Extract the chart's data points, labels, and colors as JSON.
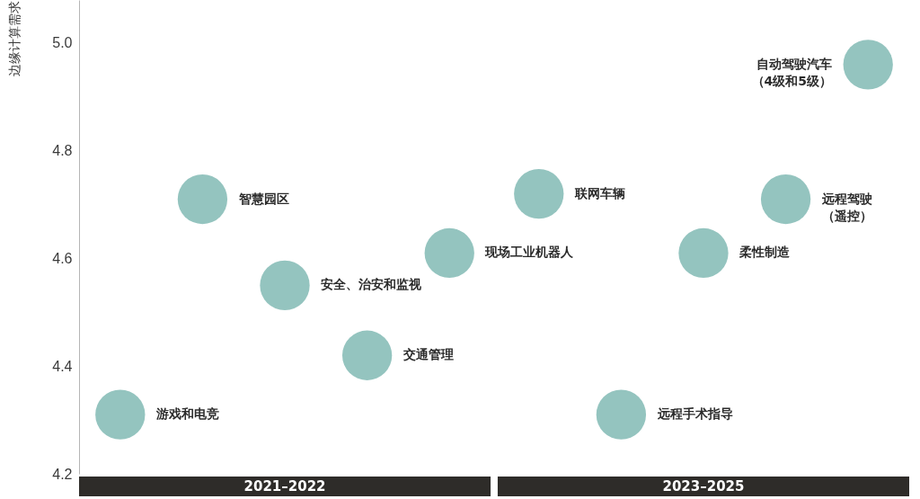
{
  "chart_data": {
    "type": "scatter",
    "ylabel": "边缘计算需求",
    "categories": [
      "2021–2022",
      "2023–2025"
    ],
    "ylim": [
      4.2,
      5.08
    ],
    "yticks": [
      4.2,
      4.4,
      4.6,
      4.8,
      {
        "value": 5,
        "label": "5.0"
      }
    ],
    "marker": "circle",
    "series": [
      {
        "name": "游戏和电竞",
        "color": "#94c4bf",
        "x": [
          "2021–2022"
        ],
        "values": [
          4.31
        ]
      },
      {
        "name": "智慧园区",
        "color": "#94c4bf",
        "x": [
          "2021–2022"
        ],
        "values": [
          4.71
        ]
      },
      {
        "name": "安全、治安和监视",
        "color": "#94c4bf",
        "x": [
          "2021–2022"
        ],
        "values": [
          4.55
        ]
      },
      {
        "name": "交通管理",
        "color": "#94c4bf",
        "x": [
          "2021–2022"
        ],
        "values": [
          4.42
        ]
      },
      {
        "name": "现场工业机器人",
        "color": "#94c4bf",
        "x": [
          "2021–2022"
        ],
        "values": [
          4.61
        ]
      },
      {
        "name": "联网车辆",
        "color": "#94c4bf",
        "x": [
          "2023–2025"
        ],
        "values": [
          4.72
        ]
      },
      {
        "name": "远程手术指导",
        "color": "#94c4bf",
        "x": [
          "2023–2025"
        ],
        "values": [
          4.31
        ]
      },
      {
        "name": "柔性制造",
        "color": "#94c4bf",
        "x": [
          "2023–2025"
        ],
        "values": [
          4.61
        ]
      },
      {
        "name": "远程驾驶（遥控）",
        "color": "#94c4bf",
        "x": [
          "2023–2025"
        ],
        "values": [
          4.71
        ]
      },
      {
        "name": "自动驾驶汽车（4级和5级）",
        "color": "#94c4bf",
        "x": [
          "2023–2025"
        ],
        "values": [
          4.96
        ]
      }
    ]
  }
}
